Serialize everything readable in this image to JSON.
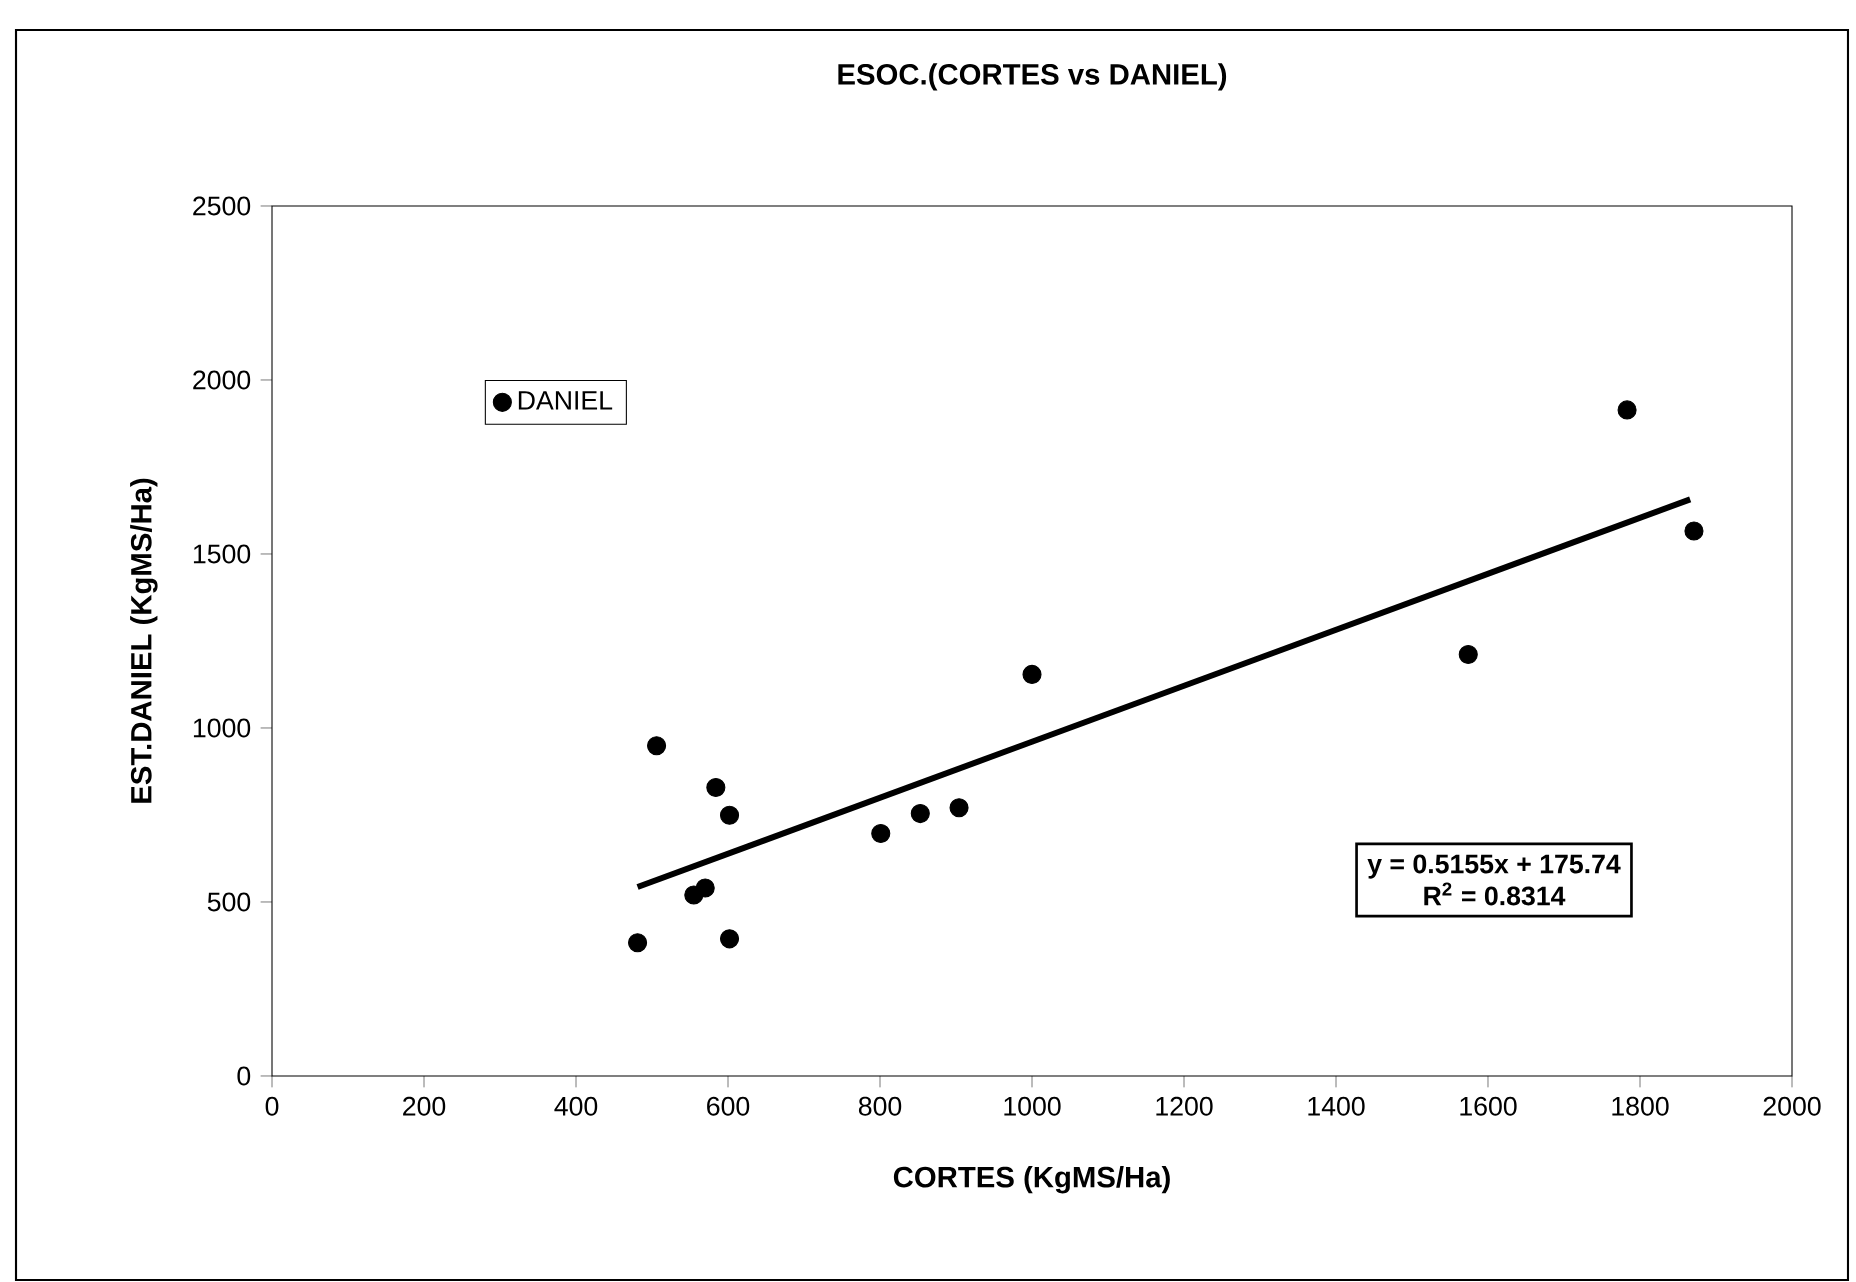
{
  "chart_data": {
    "type": "scatter",
    "title": "ESOC.(CORTES vs DANIEL)",
    "xlabel": "CORTES (KgMS/Ha)",
    "ylabel": "EST.DANIEL (KgMS/Ha)",
    "xlim": [
      0,
      2000
    ],
    "ylim": [
      0,
      2500
    ],
    "xticks": [
      0,
      200,
      400,
      600,
      800,
      1000,
      1200,
      1400,
      1600,
      1800,
      2000
    ],
    "yticks": [
      0,
      500,
      1000,
      1500,
      2000,
      2500
    ],
    "legend": "top left",
    "series": [
      {
        "name": "DANIEL",
        "marker": "circle",
        "color": "#000000",
        "x": [
          481,
          506,
          584,
          602,
          555,
          570,
          602,
          801,
          853,
          904,
          1000,
          1574,
          1783,
          1871
        ],
        "values": [
          383,
          949,
          829,
          749,
          520,
          540,
          394,
          697,
          754,
          771,
          1154,
          1211,
          1914,
          1566
        ]
      },
      {
        "type": "line",
        "color": "#000000",
        "x": [
          481,
          1866
        ],
        "values": [
          543,
          1657
        ]
      }
    ],
    "annotations": [
      "y = 0.5155x + 175.74",
      "R$^{2}$ = 0.8314"
    ]
  }
}
